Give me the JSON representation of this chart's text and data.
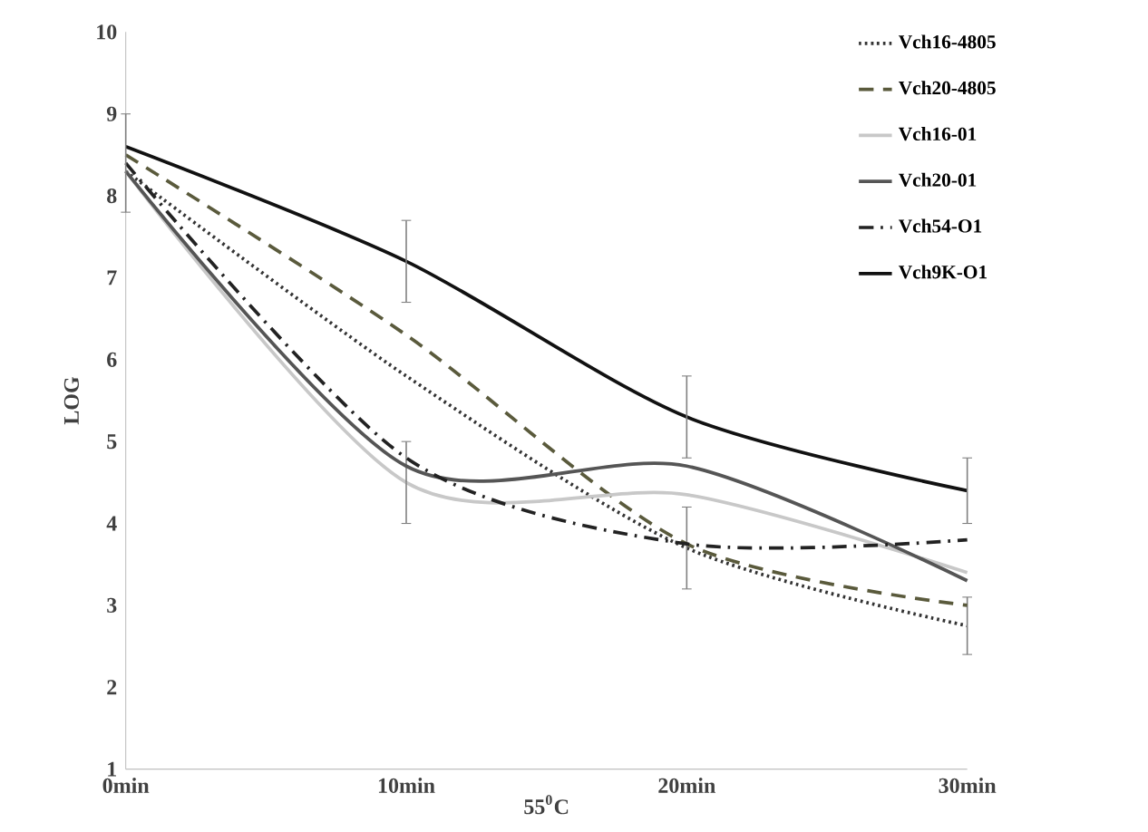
{
  "chart_data": {
    "type": "line",
    "xlabel": "55$^{0}$C",
    "ylabel": "LOG",
    "categories": [
      "0min",
      "10min",
      "20min",
      "30min"
    ],
    "ylim": [
      1,
      10
    ],
    "yticks": [
      1,
      2,
      3,
      4,
      5,
      6,
      7,
      8,
      9,
      10
    ],
    "legend": "right",
    "grid": false,
    "series": [
      {
        "name": "Vch16-4805",
        "color": "#333333",
        "line_style": "dotted",
        "values": [
          8.3,
          5.8,
          3.7,
          2.75
        ],
        "errors": [
          null,
          null,
          0.5,
          0.35
        ]
      },
      {
        "name": "Vch20-4805",
        "color": "#5a5a3c",
        "line_style": "dashed",
        "values": [
          8.5,
          6.3,
          3.75,
          3.0
        ]
      },
      {
        "name": "Vch16-01",
        "color": "#c8c8c8",
        "line_style": "solid",
        "values": [
          8.3,
          4.5,
          4.35,
          3.4
        ],
        "errors": [
          null,
          0.5,
          null,
          null
        ]
      },
      {
        "name": "Vch20-01",
        "color": "#555555",
        "line_style": "solid",
        "values": [
          8.3,
          4.7,
          4.7,
          3.3
        ]
      },
      {
        "name": "Vch54-O1",
        "color": "#222222",
        "line_style": "dashdot",
        "values": [
          8.4,
          4.8,
          3.75,
          3.8
        ]
      },
      {
        "name": "Vch9K-O1",
        "color": "#111111",
        "line_style": "solid",
        "values": [
          8.6,
          7.2,
          5.3,
          4.4
        ],
        "errors": [
          [
            7.8,
            9.0
          ],
          0.5,
          0.5,
          0.4
        ]
      }
    ]
  }
}
